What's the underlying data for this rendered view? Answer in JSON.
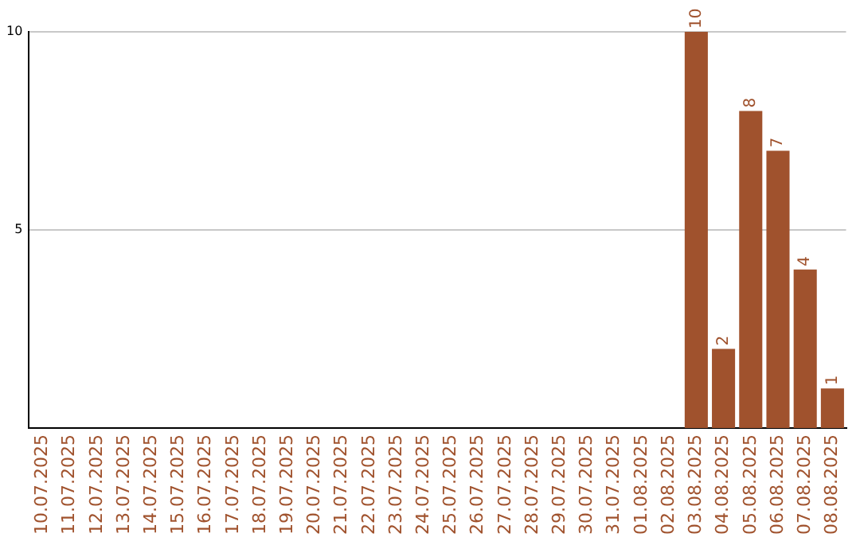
{
  "chart_data": {
    "type": "bar",
    "categories": [
      "10.07.2025",
      "11.07.2025",
      "12.07.2025",
      "13.07.2025",
      "14.07.2025",
      "15.07.2025",
      "16.07.2025",
      "17.07.2025",
      "18.07.2025",
      "19.07.2025",
      "20.07.2025",
      "21.07.2025",
      "22.07.2025",
      "23.07.2025",
      "24.07.2025",
      "25.07.2025",
      "26.07.2025",
      "27.07.2025",
      "28.07.2025",
      "29.07.2025",
      "30.07.2025",
      "31.07.2025",
      "01.08.2025",
      "02.08.2025",
      "03.08.2025",
      "04.08.2025",
      "05.08.2025",
      "06.08.2025",
      "07.08.2025",
      "08.08.2025"
    ],
    "values": [
      0,
      0,
      0,
      0,
      0,
      0,
      0,
      0,
      0,
      0,
      0,
      0,
      0,
      0,
      0,
      0,
      0,
      0,
      0,
      0,
      0,
      0,
      0,
      0,
      10,
      2,
      8,
      7,
      4,
      1
    ],
    "value_labels": [
      null,
      null,
      null,
      null,
      null,
      null,
      null,
      null,
      null,
      null,
      null,
      null,
      null,
      null,
      null,
      null,
      null,
      null,
      null,
      null,
      null,
      null,
      null,
      null,
      "10",
      "2",
      "8",
      "7",
      "4",
      "1"
    ],
    "color": "#a0522d",
    "ylim": [
      0,
      10
    ],
    "yticks": [
      5,
      10
    ],
    "grid": "y"
  }
}
